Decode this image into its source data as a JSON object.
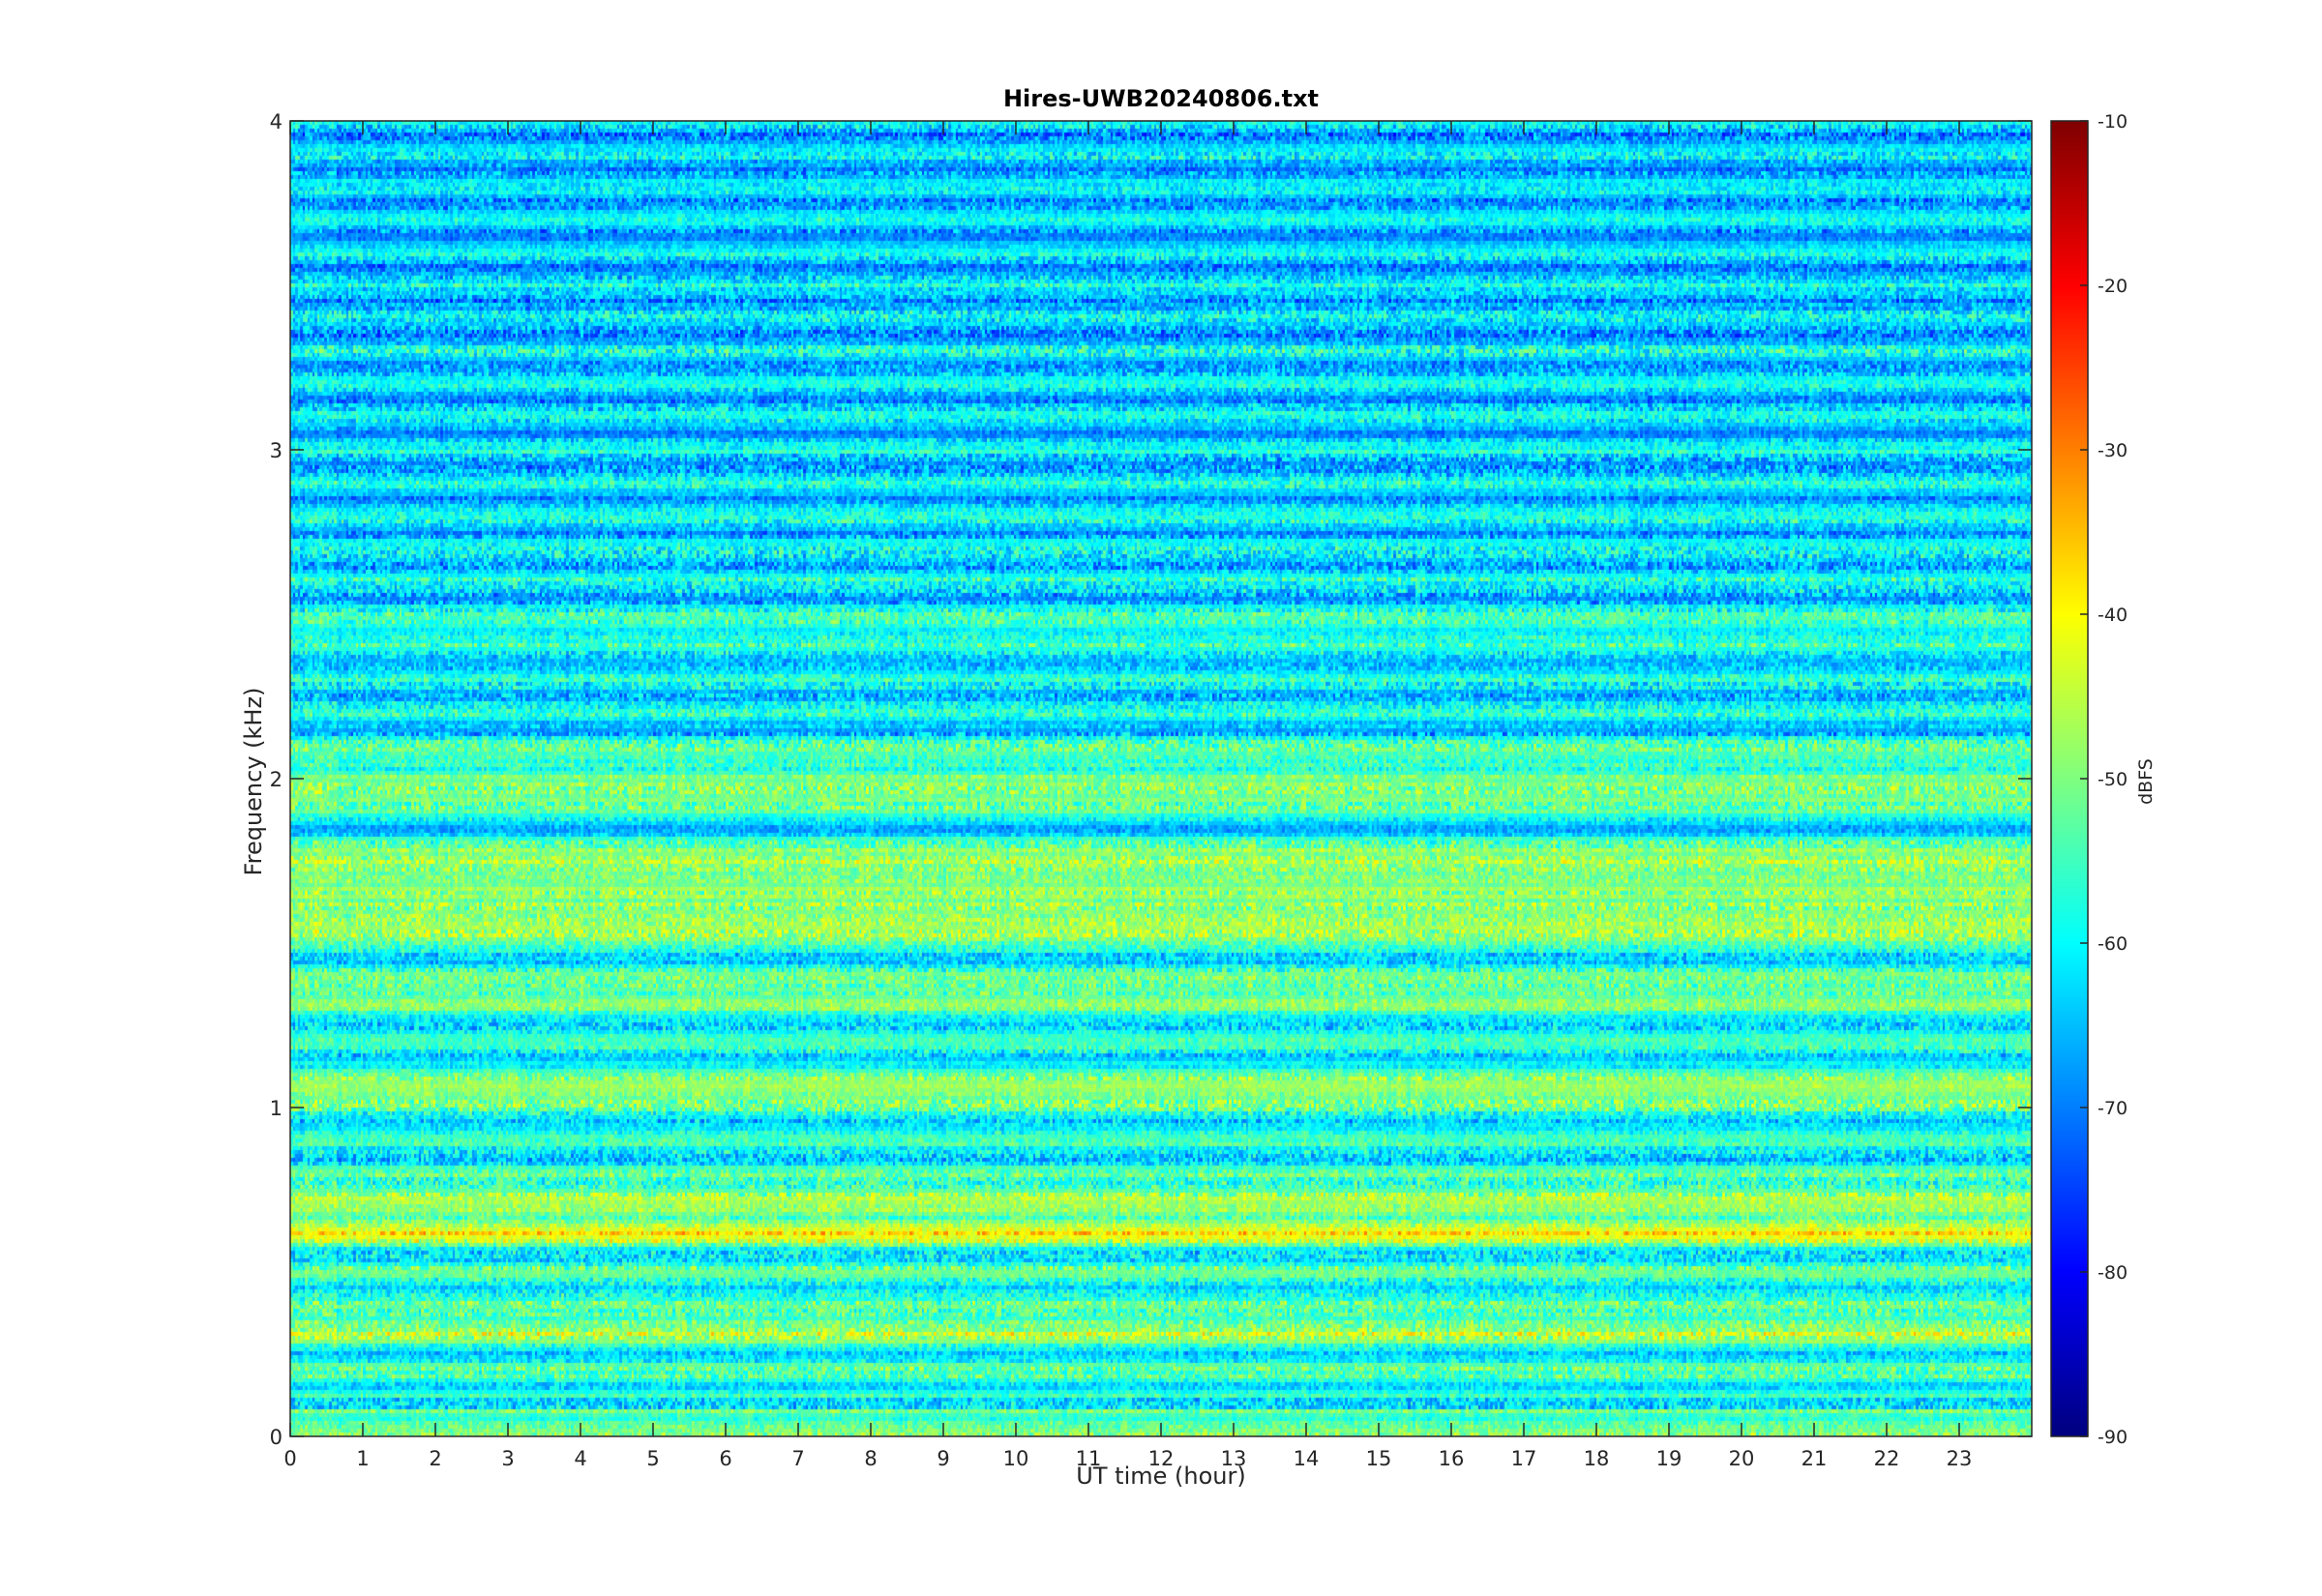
{
  "chart_data": {
    "type": "heatmap",
    "title": "Hires-UWB20240806.txt",
    "xlabel": "UT time (hour)",
    "ylabel": "Frequency (kHz)",
    "xlim": [
      0,
      24
    ],
    "ylim": [
      0,
      4
    ],
    "x_ticks": [
      0,
      1,
      2,
      3,
      4,
      5,
      6,
      7,
      8,
      9,
      10,
      11,
      12,
      13,
      14,
      15,
      16,
      17,
      18,
      19,
      20,
      21,
      22,
      23
    ],
    "x_tick_labels": [
      "0",
      "1",
      "2",
      "3",
      "4",
      "5",
      "6",
      "7",
      "8",
      "9",
      "10",
      "11",
      "12",
      "13",
      "14",
      "15",
      "16",
      "17",
      "18",
      "19",
      "20",
      "21",
      "22",
      "23"
    ],
    "y_ticks": [
      0,
      1,
      2,
      3,
      4
    ],
    "y_tick_labels": [
      "0",
      "1",
      "2",
      "3",
      "4"
    ],
    "colorbar": {
      "label": "dBFS",
      "colormap": "jet",
      "range": [
        -90,
        -10
      ],
      "ticks": [
        -90,
        -80,
        -70,
        -60,
        -50,
        -40,
        -30,
        -20,
        -10
      ],
      "tick_labels": [
        "-90",
        "-80",
        "-70",
        "-60",
        "-50",
        "-40",
        "-30",
        "-20",
        "-10"
      ]
    },
    "grid": false,
    "description_bands_kHz": [
      0.05,
      0.33,
      0.63,
      0.73,
      1.05,
      1.35,
      1.55,
      1.65,
      1.75,
      1.95,
      2.05,
      2.45
    ],
    "band_levels_dBFS": [
      -48,
      -45,
      -38,
      -45,
      -42,
      -44,
      -40,
      -42,
      -40,
      -44,
      -50,
      -52
    ],
    "background_level_low_dBFS": -55,
    "background_level_high_dBFS": -63
  }
}
